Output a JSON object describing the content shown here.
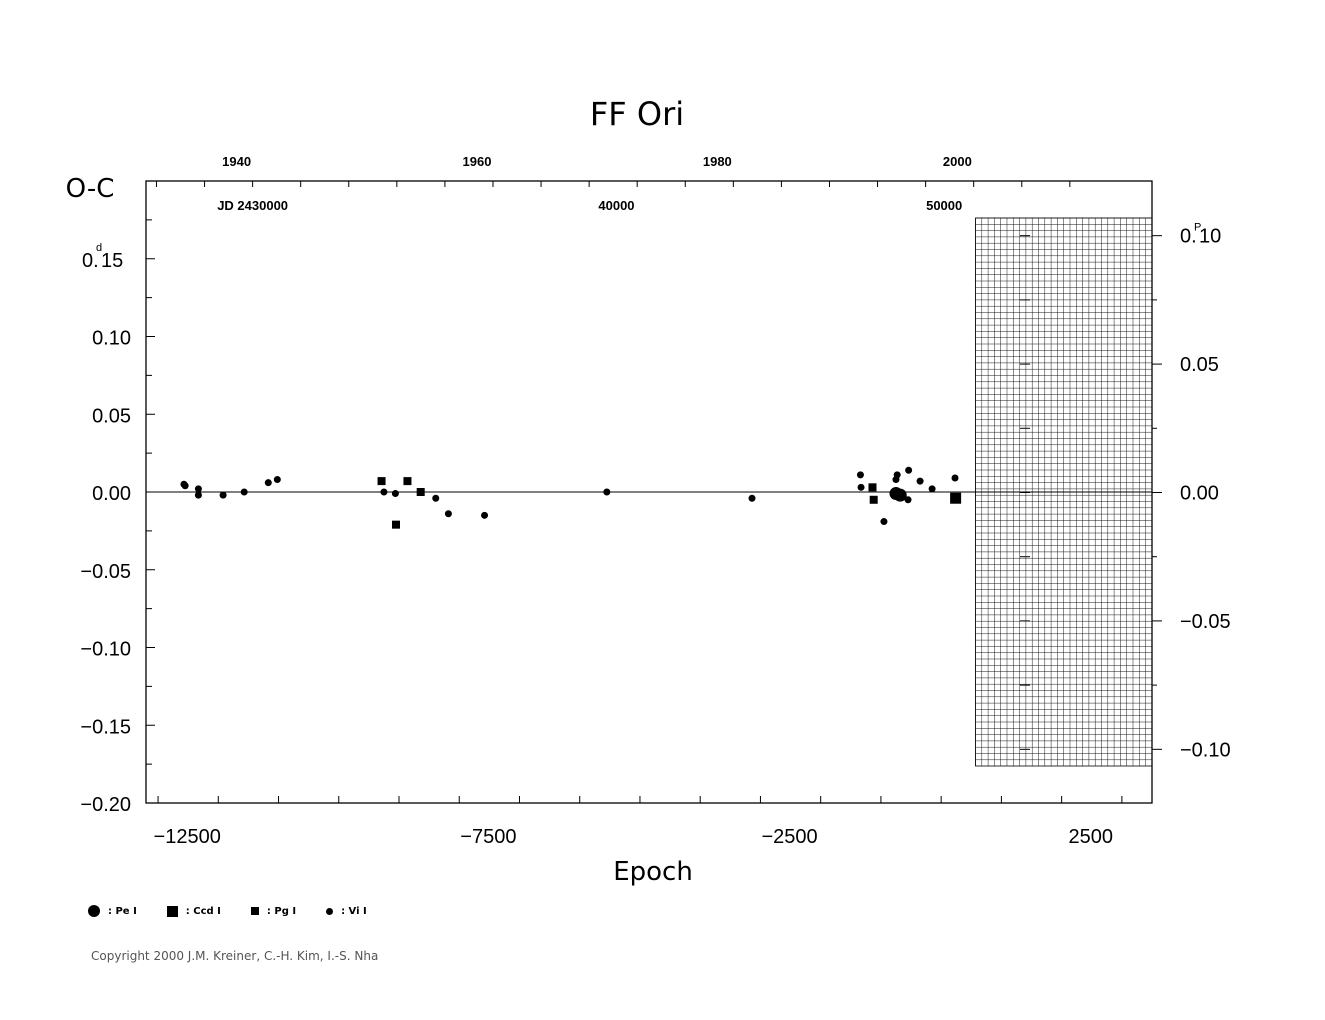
{
  "chart_data": {
    "type": "scatter",
    "title": "FF  Ori",
    "ylabel": "O-C",
    "xlabel": "Epoch",
    "xlim": [
      -13200,
      3500
    ],
    "ylim": [
      -0.2,
      0.2
    ],
    "left_unit": "d",
    "right_unit": "P",
    "x_ticks": [
      -12500,
      -7500,
      -2500,
      2500
    ],
    "x_tick_labels": [
      "−12500",
      "−7500",
      "−2500",
      "2500"
    ],
    "y_ticks": [
      0.15,
      0.1,
      0.05,
      0.0,
      -0.05,
      -0.1,
      -0.15,
      -0.2
    ],
    "y_tick_labels": [
      "0.15",
      "0.10",
      "0.05",
      "0.00",
      "−0.05",
      "−0.10",
      "−0.15",
      "−0.20"
    ],
    "y_top_label": "0.",
    "y_top_label_rest": "15",
    "right_ticks": [
      0.05,
      0.0,
      -0.05,
      -0.1
    ],
    "right_tick_labels": [
      "0.05",
      "0.00",
      "−0.05",
      "−0.10"
    ],
    "right_top_label": "0.",
    "right_top_label_rest": "10",
    "right_axis_range": [
      -0.11,
      0.11
    ],
    "top_year_ticks": [
      {
        "epoch": -11430,
        "label": "1940"
      },
      {
        "epoch": -7440,
        "label": "1960"
      },
      {
        "epoch": -3450,
        "label": "1980"
      },
      {
        "epoch": 535,
        "label": "2000"
      }
    ],
    "jd_labels": [
      {
        "epoch": -11430,
        "label": "JD  2430000"
      },
      {
        "epoch": -5390,
        "label": "40000"
      },
      {
        "epoch": 50,
        "label": "50000"
      }
    ],
    "future_region": [
      570,
      3500
    ],
    "series": [
      {
        "name": "Pe",
        "marker": "circle-lg",
        "x": [
          -750,
          -680
        ],
        "y": [
          -0.001,
          -0.002
        ]
      },
      {
        "name": "Ccd",
        "marker": "square-lg",
        "x": [
          240
        ],
        "y": [
          -0.004
        ]
      },
      {
        "name": "Pg",
        "marker": "square-sm",
        "x": [
          -9290,
          -9050,
          -8860,
          -8640,
          -1140,
          -1120
        ],
        "y": [
          0.007,
          -0.021,
          0.007,
          0.0,
          0.003,
          -0.005
        ]
      },
      {
        "name": "Vi",
        "marker": "circle-sm",
        "x": [
          -12570,
          -12550,
          -12330,
          -12330,
          -11920,
          -11570,
          -11170,
          -11020,
          -9250,
          -9060,
          -8390,
          -8180,
          -7580,
          -5550,
          -3140,
          -1330,
          -730,
          -950,
          -550,
          -750,
          -540,
          -1340,
          -350,
          -150,
          230,
          230
        ],
        "y": [
          0.005,
          0.004,
          0.002,
          -0.002,
          -0.002,
          0.0,
          0.006,
          0.008,
          0.0,
          -0.001,
          -0.004,
          -0.014,
          -0.015,
          0.0,
          -0.004,
          0.003,
          0.011,
          -0.019,
          -0.005,
          0.008,
          0.014,
          0.011,
          0.007,
          0.002,
          -0.003,
          0.009
        ]
      }
    ]
  },
  "legend": {
    "items": [
      {
        "marker": "circle-lg",
        "label": ": Pe  I"
      },
      {
        "marker": "square-lg",
        "label": ": Ccd  I"
      },
      {
        "marker": "square-sm",
        "label": ": Pg  I"
      },
      {
        "marker": "circle-sm",
        "label": ": Vi  I"
      }
    ]
  },
  "footer": {
    "copyright": "Copyright 2000 J.M. Kreiner, C.-H. Kim, I.-S. Nha"
  }
}
